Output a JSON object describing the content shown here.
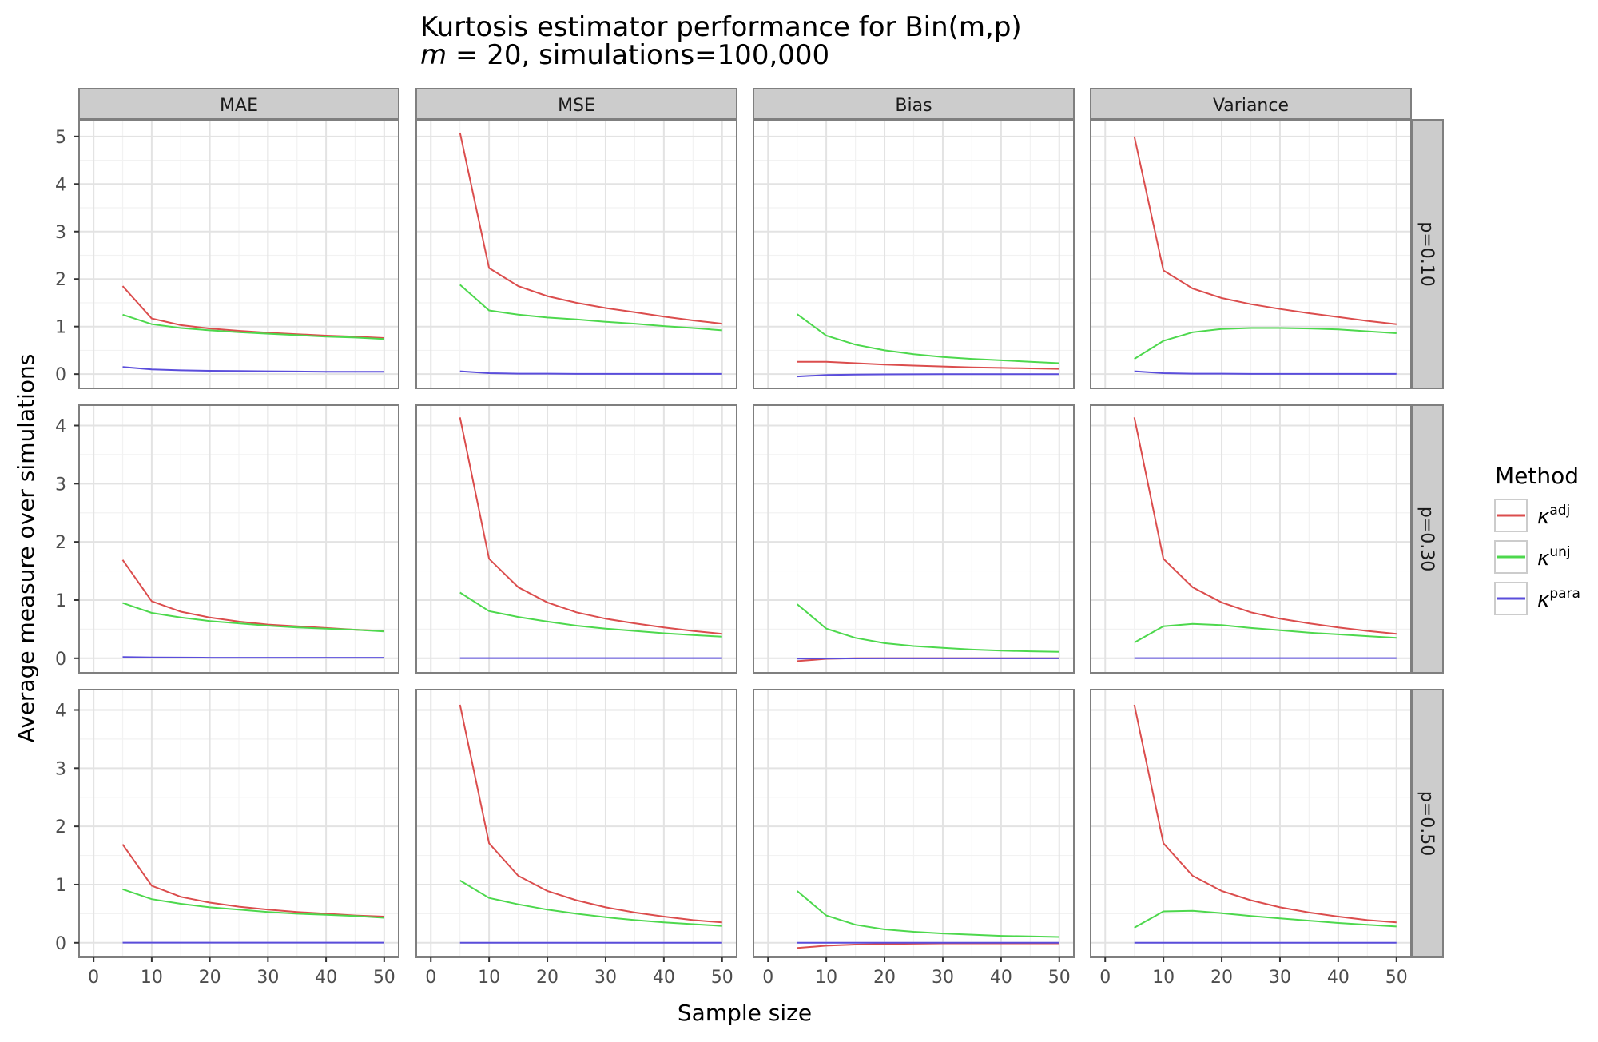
{
  "chart_data": {
    "type": "line",
    "title_line1": "Kurtosis estimator performance for Bin(m,p)",
    "title_line2_var": "m",
    "title_line2_eq": " = 20, simulations=100,000",
    "xlabel": "Sample size",
    "ylabel": "Average measure over simulations",
    "legend_title": "Method",
    "legend_position": "right",
    "grid": true,
    "x": [
      5,
      10,
      15,
      20,
      25,
      30,
      35,
      40,
      45,
      50
    ],
    "xlim": [
      -2.5,
      52.5
    ],
    "xticks": [
      0,
      10,
      20,
      30,
      40,
      50
    ],
    "columns": [
      "MAE",
      "MSE",
      "Bias",
      "Variance"
    ],
    "rows": [
      {
        "label": "p=0.10",
        "ylim": [
          -0.3,
          5.35
        ],
        "yticks": [
          0,
          1,
          2,
          3,
          4,
          5
        ]
      },
      {
        "label": "p=0.30",
        "ylim": [
          -0.25,
          4.35
        ],
        "yticks": [
          0,
          1,
          2,
          3,
          4
        ]
      },
      {
        "label": "p=0.50",
        "ylim": [
          -0.25,
          4.35
        ],
        "yticks": [
          0,
          1,
          2,
          3,
          4
        ]
      }
    ],
    "series": [
      {
        "name": "adj",
        "symbol": "κ",
        "sup": "adj",
        "color": "#db4d4d"
      },
      {
        "name": "unj",
        "symbol": "κ",
        "sup": "unj",
        "color": "#4dd84d"
      },
      {
        "name": "para",
        "symbol": "κ",
        "sup": "para",
        "color": "#5a4ddb"
      }
    ],
    "panels": [
      {
        "row": 0,
        "col": 0,
        "values": {
          "adj": [
            1.85,
            1.17,
            1.03,
            0.96,
            0.91,
            0.87,
            0.84,
            0.81,
            0.79,
            0.76
          ],
          "unj": [
            1.25,
            1.05,
            0.97,
            0.92,
            0.88,
            0.85,
            0.82,
            0.79,
            0.77,
            0.74
          ],
          "para": [
            0.15,
            0.1,
            0.08,
            0.07,
            0.065,
            0.06,
            0.055,
            0.05,
            0.05,
            0.05
          ]
        }
      },
      {
        "row": 0,
        "col": 1,
        "values": {
          "adj": [
            5.08,
            2.23,
            1.85,
            1.64,
            1.5,
            1.39,
            1.3,
            1.21,
            1.13,
            1.06
          ],
          "unj": [
            1.88,
            1.34,
            1.25,
            1.19,
            1.15,
            1.1,
            1.06,
            1.01,
            0.97,
            0.92
          ],
          "para": [
            0.06,
            0.02,
            0.01,
            0.01,
            0.005,
            0.005,
            0.005,
            0.005,
            0.005,
            0.005
          ]
        }
      },
      {
        "row": 0,
        "col": 2,
        "values": {
          "adj": [
            0.26,
            0.26,
            0.23,
            0.2,
            0.18,
            0.16,
            0.14,
            0.13,
            0.12,
            0.11
          ],
          "unj": [
            1.26,
            0.81,
            0.62,
            0.5,
            0.42,
            0.36,
            0.32,
            0.29,
            0.26,
            0.23
          ],
          "para": [
            -0.05,
            -0.02,
            -0.01,
            -0.005,
            -0.004,
            -0.003,
            -0.002,
            -0.002,
            -0.002,
            -0.002
          ]
        }
      },
      {
        "row": 0,
        "col": 3,
        "values": {
          "adj": [
            5.0,
            2.18,
            1.8,
            1.6,
            1.47,
            1.37,
            1.28,
            1.2,
            1.12,
            1.05
          ],
          "unj": [
            0.32,
            0.7,
            0.88,
            0.95,
            0.97,
            0.97,
            0.96,
            0.94,
            0.9,
            0.86
          ],
          "para": [
            0.06,
            0.02,
            0.01,
            0.01,
            0.005,
            0.005,
            0.005,
            0.005,
            0.005,
            0.005
          ]
        }
      },
      {
        "row": 1,
        "col": 0,
        "values": {
          "adj": [
            1.69,
            0.98,
            0.8,
            0.7,
            0.63,
            0.58,
            0.55,
            0.52,
            0.49,
            0.47
          ],
          "unj": [
            0.95,
            0.78,
            0.7,
            0.64,
            0.6,
            0.56,
            0.53,
            0.51,
            0.49,
            0.46
          ],
          "para": [
            0.02,
            0.015,
            0.012,
            0.01,
            0.01,
            0.01,
            0.01,
            0.01,
            0.01,
            0.01
          ]
        }
      },
      {
        "row": 1,
        "col": 1,
        "values": {
          "adj": [
            4.14,
            1.71,
            1.22,
            0.96,
            0.79,
            0.68,
            0.6,
            0.53,
            0.47,
            0.42
          ],
          "unj": [
            1.13,
            0.81,
            0.71,
            0.63,
            0.56,
            0.51,
            0.47,
            0.43,
            0.4,
            0.37
          ],
          "para": [
            0.002,
            0.002,
            0.002,
            0.002,
            0.002,
            0.002,
            0.002,
            0.002,
            0.002,
            0.002
          ]
        }
      },
      {
        "row": 1,
        "col": 2,
        "values": {
          "adj": [
            -0.05,
            -0.01,
            0.0,
            0.0,
            0.0,
            0.0,
            0.0,
            0.0,
            0.0,
            0.0
          ],
          "unj": [
            0.93,
            0.51,
            0.35,
            0.26,
            0.21,
            0.18,
            0.15,
            0.13,
            0.12,
            0.11
          ],
          "para": [
            -0.005,
            -0.004,
            -0.003,
            -0.002,
            -0.002,
            -0.002,
            -0.002,
            -0.002,
            -0.002,
            -0.002
          ]
        }
      },
      {
        "row": 1,
        "col": 3,
        "values": {
          "adj": [
            4.14,
            1.71,
            1.22,
            0.96,
            0.79,
            0.68,
            0.6,
            0.53,
            0.47,
            0.42
          ],
          "unj": [
            0.27,
            0.55,
            0.59,
            0.57,
            0.52,
            0.48,
            0.44,
            0.41,
            0.38,
            0.35
          ],
          "para": [
            0.002,
            0.002,
            0.002,
            0.002,
            0.002,
            0.002,
            0.002,
            0.002,
            0.002,
            0.002
          ]
        }
      },
      {
        "row": 2,
        "col": 0,
        "values": {
          "adj": [
            1.69,
            0.98,
            0.79,
            0.69,
            0.62,
            0.57,
            0.53,
            0.5,
            0.47,
            0.45
          ],
          "unj": [
            0.92,
            0.75,
            0.67,
            0.61,
            0.57,
            0.53,
            0.5,
            0.48,
            0.46,
            0.43
          ],
          "para": [
            0.002,
            0.002,
            0.002,
            0.002,
            0.002,
            0.002,
            0.002,
            0.002,
            0.002,
            0.002
          ]
        }
      },
      {
        "row": 2,
        "col": 1,
        "values": {
          "adj": [
            4.09,
            1.71,
            1.15,
            0.89,
            0.73,
            0.61,
            0.52,
            0.45,
            0.39,
            0.35
          ],
          "unj": [
            1.07,
            0.77,
            0.66,
            0.57,
            0.5,
            0.44,
            0.39,
            0.35,
            0.32,
            0.29
          ],
          "para": [
            0.001,
            0.001,
            0.001,
            0.001,
            0.001,
            0.001,
            0.001,
            0.001,
            0.001,
            0.001
          ]
        }
      },
      {
        "row": 2,
        "col": 2,
        "values": {
          "adj": [
            -0.09,
            -0.05,
            -0.03,
            -0.02,
            -0.015,
            -0.01,
            -0.01,
            -0.01,
            -0.01,
            -0.01
          ],
          "unj": [
            0.89,
            0.47,
            0.31,
            0.23,
            0.19,
            0.16,
            0.14,
            0.12,
            0.11,
            0.1
          ],
          "para": [
            0.0,
            0.0,
            0.0,
            0.0,
            0.0,
            0.0,
            0.0,
            0.0,
            0.0,
            0.0
          ]
        }
      },
      {
        "row": 2,
        "col": 3,
        "values": {
          "adj": [
            4.09,
            1.71,
            1.15,
            0.89,
            0.73,
            0.61,
            0.52,
            0.45,
            0.39,
            0.35
          ],
          "unj": [
            0.26,
            0.54,
            0.55,
            0.51,
            0.46,
            0.42,
            0.38,
            0.34,
            0.31,
            0.28
          ],
          "para": [
            0.001,
            0.001,
            0.001,
            0.001,
            0.001,
            0.001,
            0.001,
            0.001,
            0.001,
            0.001
          ]
        }
      }
    ]
  }
}
